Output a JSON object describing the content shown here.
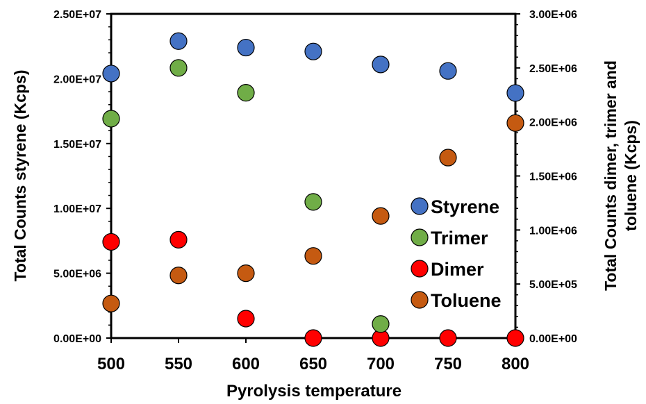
{
  "chart_data": {
    "type": "scatter",
    "title": "",
    "x": [
      500,
      550,
      600,
      650,
      700,
      750,
      800
    ],
    "xlabel": "Pyrolysis temperature",
    "xlim": [
      500,
      800
    ],
    "x_ticks": [
      "500",
      "550",
      "600",
      "650",
      "700",
      "750",
      "800"
    ],
    "ylabel": "Total Counts styrene (Kcps)",
    "ylim": [
      0,
      25000000
    ],
    "y_ticks": [
      "0.00E+00",
      "5.00E+06",
      "1.00E+07",
      "1.50E+07",
      "2.00E+07",
      "2.50E+07"
    ],
    "y2label": "Total Counts dimer, trimer and toluene (Kcps)",
    "y2lim": [
      0,
      3000000
    ],
    "y2_ticks": [
      "0.00E+00",
      "5.00E+05",
      "1.00E+06",
      "1.50E+06",
      "2.00E+06",
      "2.50E+06",
      "3.00E+06"
    ],
    "grid": false,
    "legend_position": "right",
    "series": [
      {
        "name": "Styrene",
        "axis": "left",
        "color": "#4472C4",
        "values": [
          20400000,
          22900000,
          22400000,
          22100000,
          21100000,
          20600000,
          18900000
        ]
      },
      {
        "name": "Trimer",
        "axis": "right",
        "color": "#70AD47",
        "values": [
          2030000,
          2500000,
          2270000,
          1260000,
          null,
          null,
          null
        ]
      },
      {
        "name": "Dimer",
        "axis": "right",
        "color": "#FF0000",
        "values": [
          890000,
          910000,
          180000,
          0,
          0,
          0,
          0
        ]
      },
      {
        "name": "Toluene",
        "axis": "right",
        "color": "#C55A11",
        "values": [
          320000,
          580000,
          600000,
          760000,
          1130000,
          1670000,
          1990000
        ]
      }
    ],
    "extra_points": [
      {
        "series": "Trimer",
        "x": 700,
        "value": 130000
      }
    ]
  }
}
